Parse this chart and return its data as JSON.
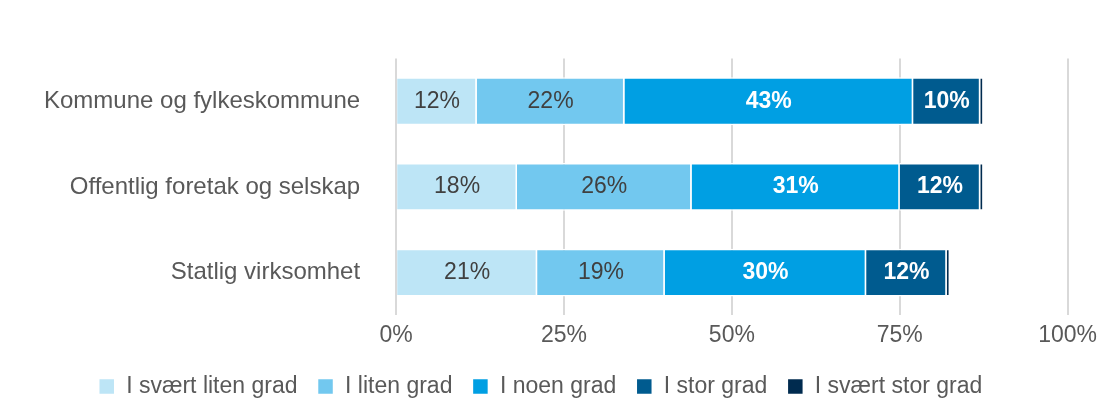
{
  "chart_data": {
    "type": "bar",
    "orientation": "horizontal",
    "stacked": true,
    "categories": [
      "Kommune og fylkeskommune",
      "Offentlig foretak og selskap",
      "Statlig virksomhet"
    ],
    "series": [
      {
        "name": "I svært liten grad",
        "color": "#bde5f6",
        "values": [
          12,
          18,
          21
        ],
        "value_labels": [
          "12%",
          "18%",
          "21%"
        ]
      },
      {
        "name": "I liten grad",
        "color": "#72c8ef",
        "values": [
          22,
          26,
          19
        ],
        "value_labels": [
          "22%",
          "26%",
          "19%"
        ]
      },
      {
        "name": "I noen grad",
        "color": "#009fe3",
        "values": [
          43,
          31,
          30
        ],
        "value_labels": [
          "43%",
          "31%",
          "30%"
        ]
      },
      {
        "name": "I stor grad",
        "color": "#005b8f",
        "values": [
          10,
          12,
          12
        ],
        "value_labels": [
          "10%",
          "12%",
          "12%"
        ]
      },
      {
        "name": "I svært stor grad",
        "color": "#002b4f",
        "values": [
          0.5,
          0.5,
          0.5
        ]
      }
    ],
    "xlim": [
      0,
      100
    ],
    "xticks": [
      {
        "value": 0,
        "label": "0%"
      },
      {
        "value": 25,
        "label": "25%"
      },
      {
        "value": 50,
        "label": "50%"
      },
      {
        "value": 75,
        "label": "75%"
      },
      {
        "value": 100,
        "label": "100%"
      }
    ],
    "grid": "x",
    "legend": "bottom"
  }
}
